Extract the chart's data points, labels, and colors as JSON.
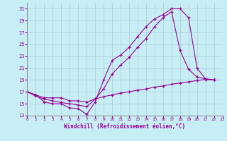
{
  "xlabel": "Windchill (Refroidissement éolien,°C)",
  "background_color": "#c8eef5",
  "grid_color": "#aaccd4",
  "line_color": "#990099",
  "xlim": [
    0,
    23
  ],
  "ylim": [
    13,
    32
  ],
  "xticks": [
    0,
    1,
    2,
    3,
    4,
    5,
    6,
    7,
    8,
    9,
    10,
    11,
    12,
    13,
    14,
    15,
    16,
    17,
    18,
    19,
    20,
    21,
    22,
    23
  ],
  "yticks": [
    13,
    15,
    17,
    19,
    21,
    23,
    25,
    27,
    29,
    31
  ],
  "upper": [
    17.0,
    16.5,
    15.3,
    15.0,
    15.0,
    14.3,
    14.2,
    13.2,
    15.3,
    19.0,
    22.3,
    23.2,
    24.5,
    26.3,
    28.0,
    29.3,
    30.0,
    31.0,
    31.0,
    29.5,
    21.0,
    19.2,
    19.0
  ],
  "lower": [
    17.0,
    16.5,
    16.0,
    16.0,
    16.0,
    15.5,
    15.5,
    15.3,
    15.8,
    16.2,
    16.5,
    16.8,
    17.0,
    17.3,
    17.5,
    17.8,
    18.0,
    18.3,
    18.5,
    18.7,
    18.9,
    19.1,
    19.0
  ],
  "mid": [
    17.0,
    16.3,
    15.8,
    15.5,
    15.2,
    15.0,
    14.8,
    14.5,
    15.8,
    17.5,
    20.0,
    21.5,
    22.8,
    24.5,
    26.0,
    28.0,
    29.5,
    30.5,
    24.0,
    20.8,
    19.5,
    19.2,
    19.0
  ]
}
